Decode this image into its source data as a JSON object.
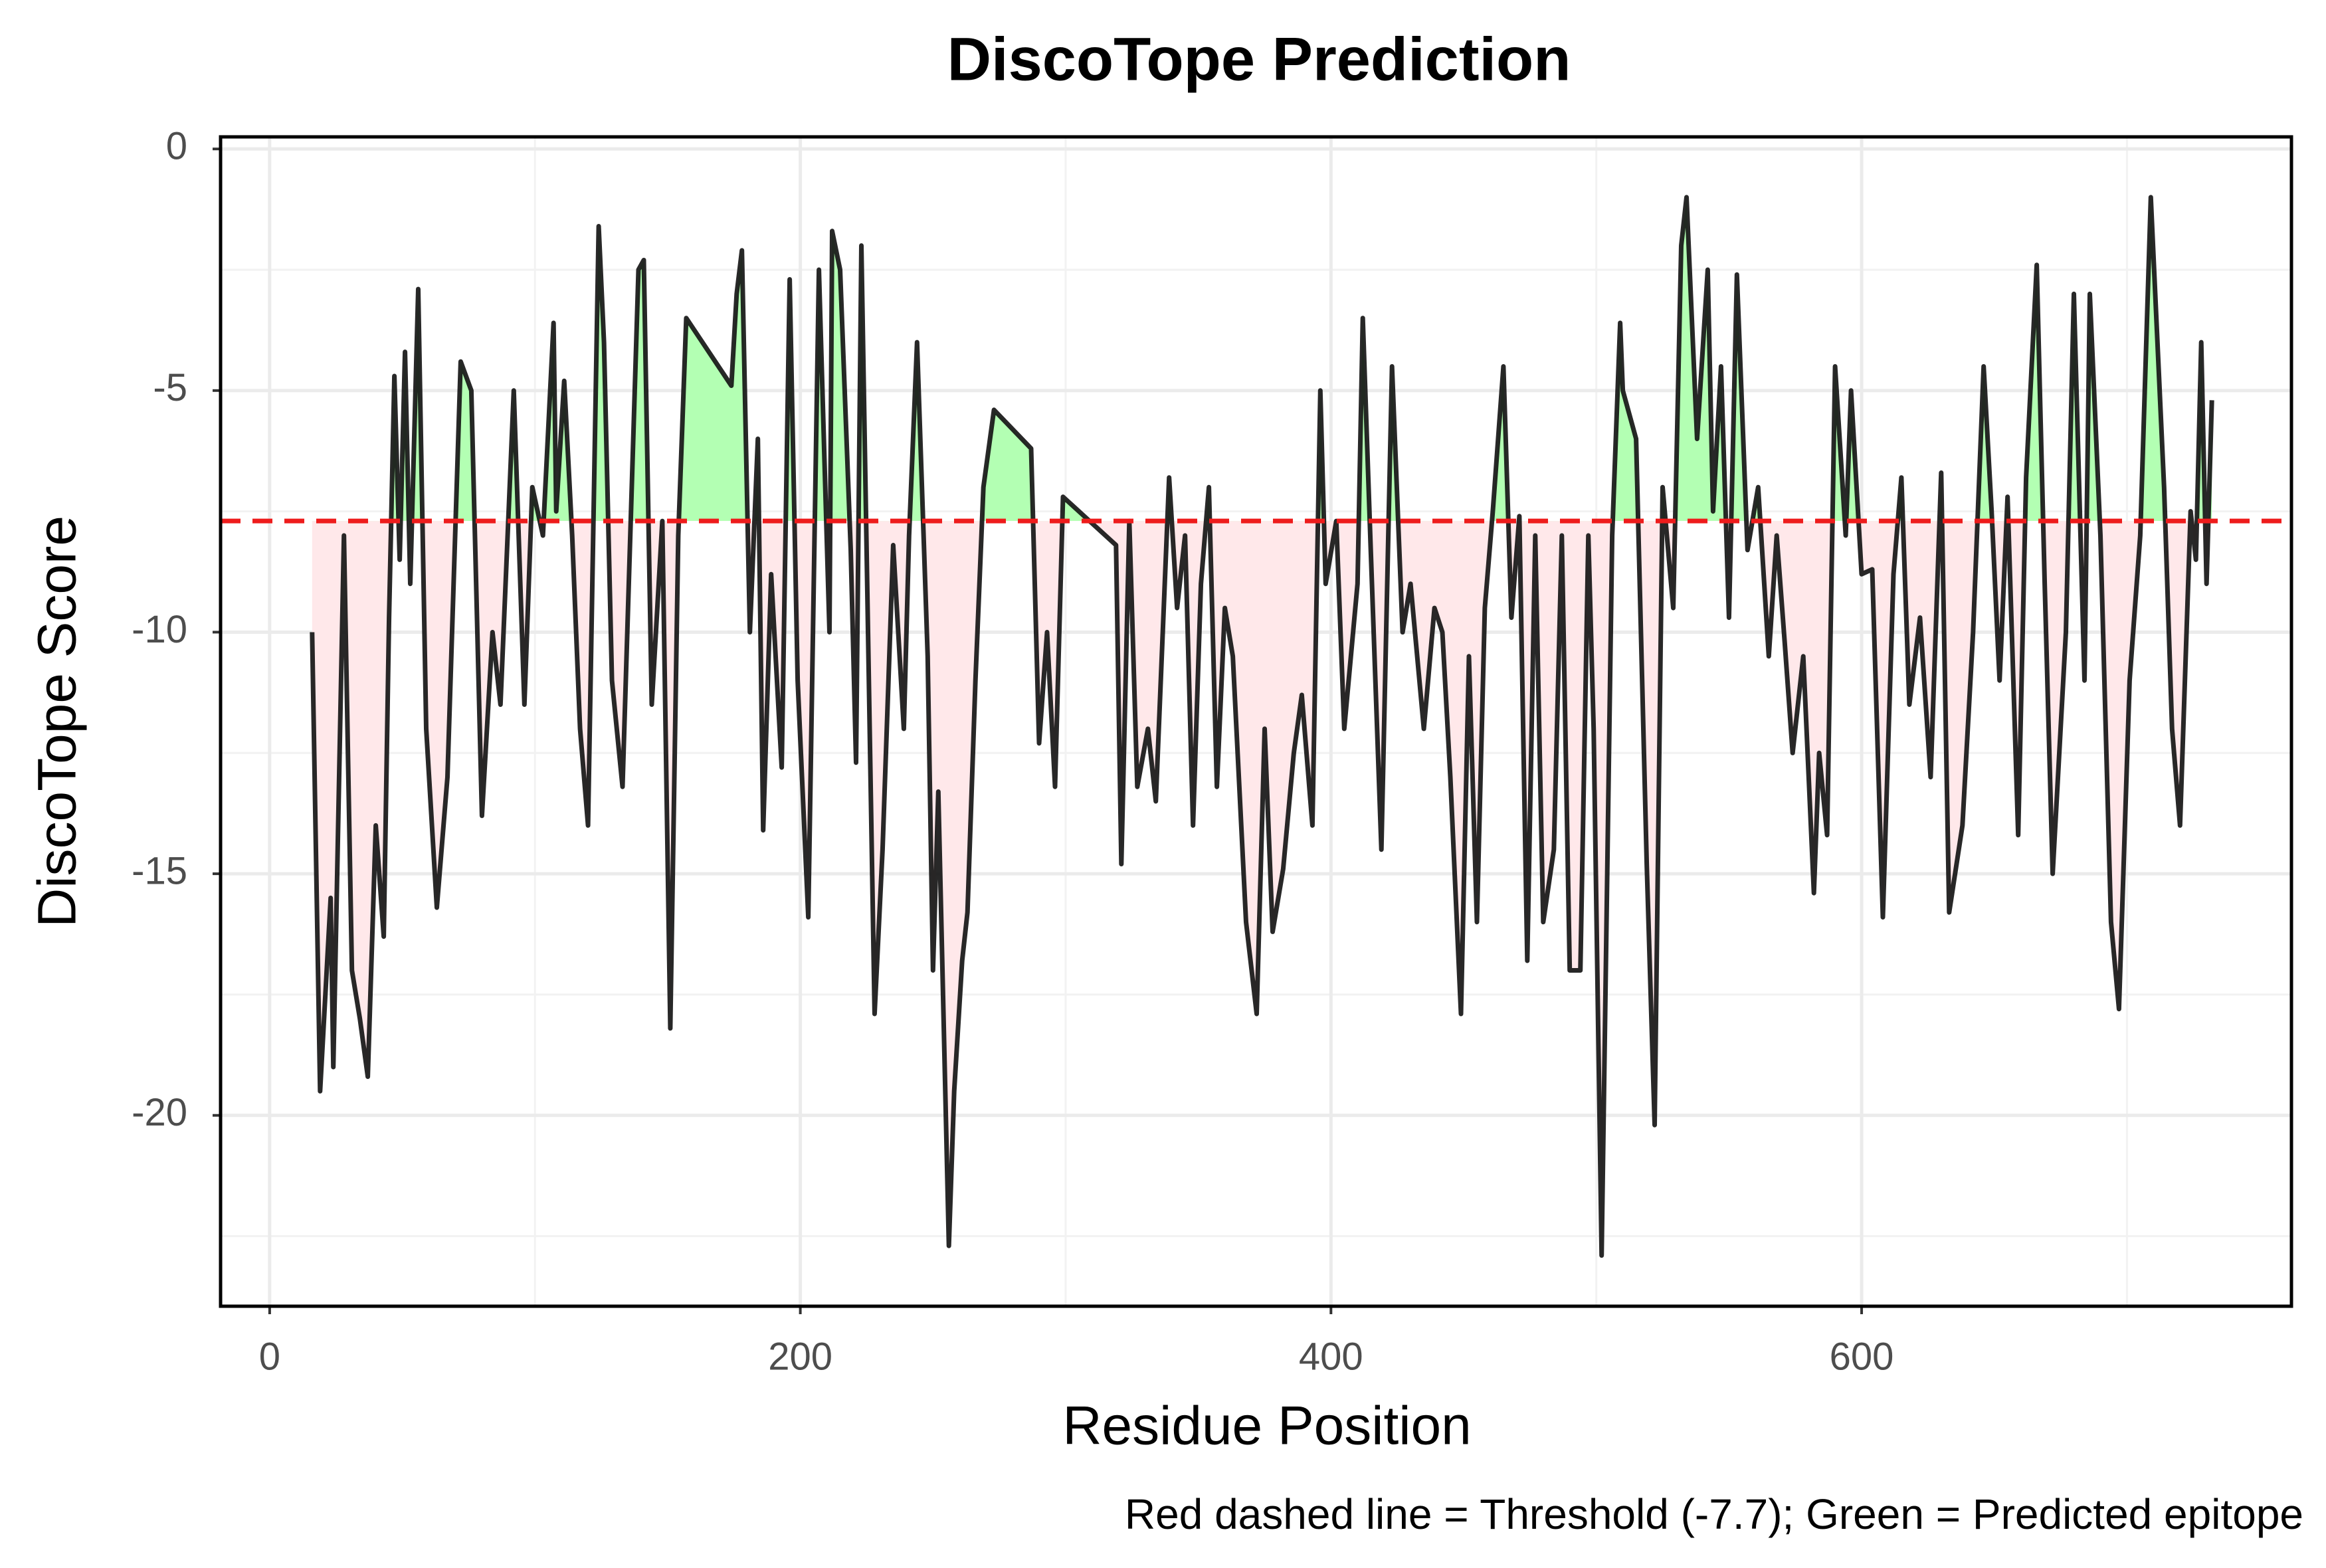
{
  "chart_data": {
    "type": "line",
    "title": "DiscoTope Prediction",
    "x_label": "Residue Position",
    "y_label": "DiscoTope Score",
    "caption": "Red dashed line = Threshold (-7.7); Green = Predicted epitope",
    "threshold": -7.7,
    "threshold_color": "#ee1c1c",
    "line_color": "#111111",
    "above_color": "#b3ffb3",
    "below_color": "#ffe8ea",
    "grid": true,
    "xlim": [
      -18.5,
      762
    ],
    "ylim": [
      -23.95,
      0.25
    ],
    "xticks": [
      0,
      200,
      400,
      600
    ],
    "yticks": [
      -20,
      -15,
      -10,
      -5,
      0
    ],
    "x": [
      16,
      19,
      23,
      24,
      28,
      31,
      34,
      37,
      40,
      43,
      45,
      47,
      49,
      51,
      53,
      56,
      59,
      63,
      67,
      72,
      76,
      80,
      84,
      87,
      92,
      96,
      99,
      103,
      107,
      108,
      111,
      114,
      117,
      120,
      124,
      126,
      129,
      133,
      139,
      141,
      144,
      148,
      151,
      154,
      157,
      174,
      176,
      178,
      181,
      184,
      186,
      189,
      193,
      196,
      199,
      203,
      207,
      211,
      212,
      215,
      219,
      221,
      223,
      228,
      231,
      235,
      239,
      241,
      244,
      248,
      250,
      252,
      256,
      258,
      261,
      263,
      266,
      269,
      273,
      287,
      290,
      293,
      296,
      299,
      319,
      321,
      324,
      327,
      331,
      334,
      339,
      342,
      345,
      348,
      351,
      354,
      357,
      360,
      363,
      368,
      372,
      375,
      378,
      382,
      386,
      389,
      393,
      396,
      398,
      402,
      405,
      410,
      412,
      415,
      419,
      423,
      427,
      430,
      435,
      439,
      442,
      445,
      449,
      452,
      455,
      458,
      461,
      465,
      468,
      471,
      474,
      477,
      480,
      484,
      487,
      490,
      494,
      497,
      499,
      502,
      506,
      509,
      510,
      515,
      519,
      522,
      525,
      529,
      532,
      534,
      538,
      542,
      544,
      547,
      550,
      553,
      557,
      561,
      565,
      568,
      571,
      574,
      578,
      582,
      584,
      587,
      590,
      594,
      596,
      600,
      604,
      608,
      612,
      615,
      618,
      622,
      626,
      630,
      633,
      638,
      642,
      646,
      649,
      652,
      655,
      659,
      662,
      666,
      669,
      672,
      677,
      680,
      684,
      686,
      690,
      694,
      697,
      701,
      705,
      709,
      714,
      717,
      720,
      724,
      726,
      728,
      730,
      732
    ],
    "values": [
      -10,
      -19.5,
      -15.5,
      -19,
      -8,
      -17,
      -18,
      -19.2,
      -14,
      -16.3,
      -9.7,
      -4.7,
      -8.5,
      -4.2,
      -9,
      -2.9,
      -12,
      -15.7,
      -13,
      -4.4,
      -5,
      -13.8,
      -10,
      -11.5,
      -5,
      -11.5,
      -7,
      -8,
      -3.6,
      -7.5,
      -4.8,
      -8,
      -12,
      -14,
      -1.6,
      -4,
      -11,
      -13.2,
      -2.5,
      -2.3,
      -11.5,
      -7.7,
      -18.2,
      -8,
      -3.5,
      -4.9,
      -3,
      -2.1,
      -10,
      -6,
      -14.1,
      -8.8,
      -12.8,
      -2.7,
      -11,
      -15.9,
      -2.5,
      -10,
      -1.7,
      -2.5,
      -8.3,
      -12.7,
      -2,
      -17.9,
      -14.5,
      -8.2,
      -12,
      -8,
      -4,
      -10.5,
      -17,
      -13.3,
      -22.7,
      -19.5,
      -16.8,
      -15.8,
      -11,
      -7,
      -5.4,
      -6.2,
      -12.3,
      -10,
      -13.2,
      -7.2,
      -8.2,
      -14.8,
      -7.7,
      -13.2,
      -12,
      -13.5,
      -6.8,
      -9.5,
      -8,
      -14,
      -9,
      -7,
      -13.2,
      -9.5,
      -10.5,
      -16,
      -17.9,
      -12,
      -16.2,
      -14.9,
      -12.5,
      -11.3,
      -14,
      -5,
      -9,
      -7.7,
      -12,
      -9,
      -3.5,
      -8.3,
      -14.5,
      -4.5,
      -10,
      -9,
      -12,
      -9.5,
      -10,
      -13,
      -17.9,
      -10.5,
      -16,
      -9.5,
      -7.5,
      -4.5,
      -9.7,
      -7.6,
      -16.8,
      -8,
      -16,
      -14.5,
      -8,
      -17,
      -17,
      -8,
      -12,
      -22.9,
      -8,
      -3.6,
      -5,
      -6,
      -14.8,
      -20.2,
      -7,
      -9.5,
      -2,
      -1,
      -6,
      -2.5,
      -7.5,
      -4.5,
      -9.7,
      -2.6,
      -8.3,
      -7,
      -10.5,
      -8,
      -10.2,
      -12.5,
      -10.5,
      -15.4,
      -12.5,
      -14.2,
      -4.5,
      -8,
      -5,
      -8.8,
      -8.7,
      -15.9,
      -8.8,
      -6.8,
      -11.5,
      -9.7,
      -13,
      -6.7,
      -15.8,
      -14,
      -10,
      -4.5,
      -7.5,
      -11,
      -7.2,
      -14.2,
      -6.8,
      -2.4,
      -9,
      -15,
      -10,
      -3,
      -11,
      -3,
      -8,
      -16,
      -17.8,
      -11,
      -8,
      -1,
      -7,
      -12,
      -14,
      -7.5,
      -8.5,
      -4,
      -9,
      -5.2
    ]
  }
}
